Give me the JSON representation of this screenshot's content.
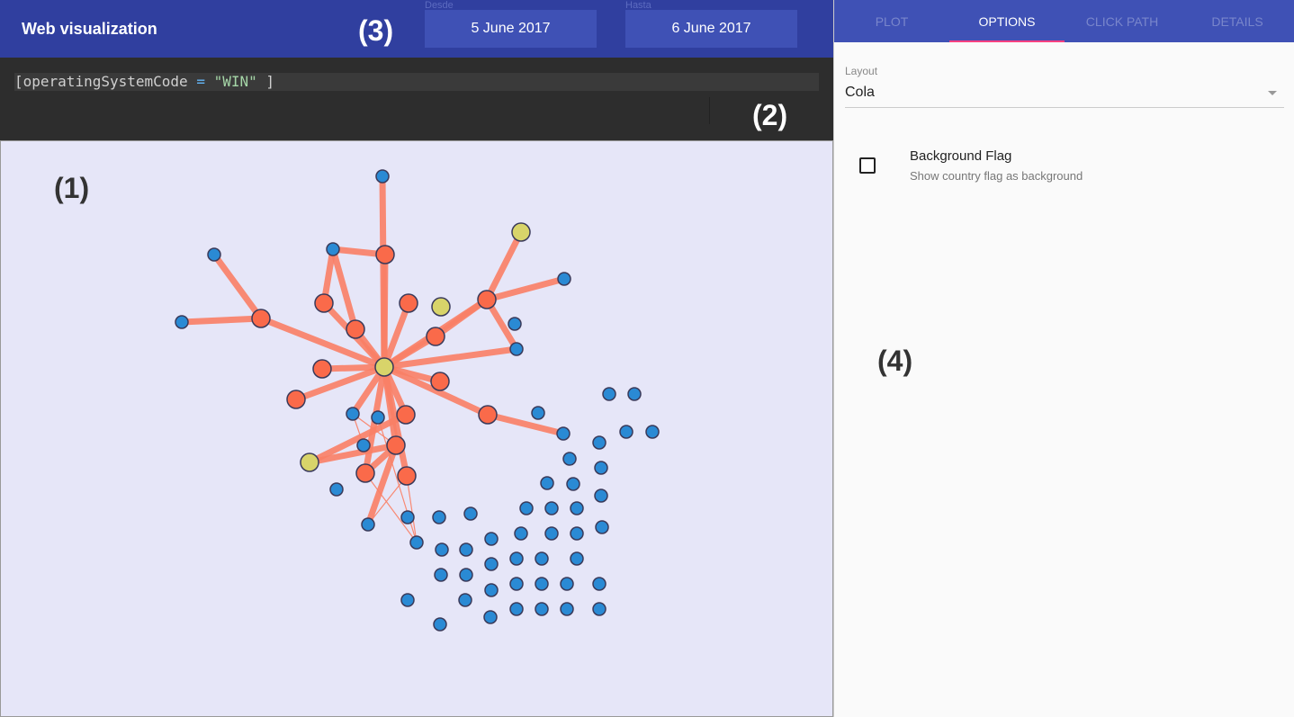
{
  "header": {
    "title": "Web visualization",
    "from_caption": "Desde",
    "to_caption": "Hasta",
    "from_date": "5 June 2017",
    "to_date": "6 June 2017"
  },
  "callouts": {
    "c1": "(1)",
    "c2": "(2)",
    "c3": "(3)",
    "c4": "(4)"
  },
  "query": {
    "field": "operatingSystemCode",
    "operator": "=",
    "value": "\"WIN\""
  },
  "tabs": [
    {
      "label": "PLOT"
    },
    {
      "label": "OPTIONS"
    },
    {
      "label": "CLICK PATH"
    },
    {
      "label": "DETAILS"
    }
  ],
  "options": {
    "layout_caption": "Layout",
    "layout_value": "Cola",
    "background_flag_label": "Background Flag",
    "background_flag_desc": "Show country flag as background",
    "background_flag_checked": false
  },
  "colors": {
    "header_bg": "#303f9f",
    "tabs_bg": "#3f51b5",
    "tab_indicator": "#ff4081",
    "edge": "#fa8066",
    "node_orange": "#fa6a4a",
    "node_yellow": "#d8d46a",
    "node_blue": "#2a8ad4",
    "graph_bg": "#e6e6f8"
  }
}
